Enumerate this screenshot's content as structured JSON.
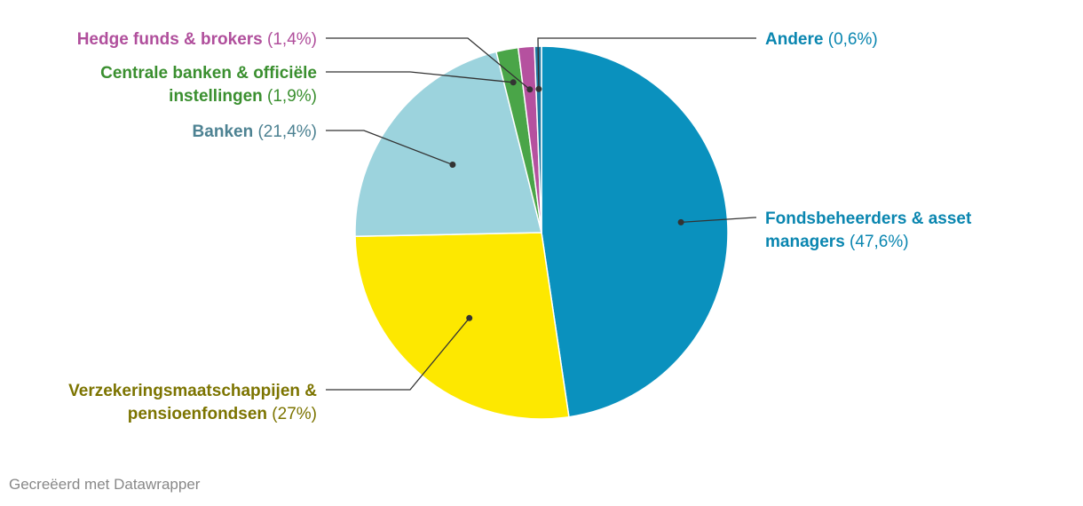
{
  "chart_data": {
    "type": "pie",
    "slices": [
      {
        "label": "Fondsbeheerders & asset managers",
        "label_lines": [
          "Fondsbeheerders & asset",
          "managers"
        ],
        "display_value": "(47,6%)",
        "value": 47.6,
        "color": "#0a91be",
        "label_color": "#0a86b0"
      },
      {
        "label": "Verzekeringsmaatschappijen & pensioenfondsen",
        "label_lines": [
          "Verzekeringsmaatschappijen &",
          "pensioenfondsen"
        ],
        "display_value": "(27%)",
        "value": 27.0,
        "color": "#fde800",
        "label_color": "#7c7400"
      },
      {
        "label": "Banken",
        "label_lines": [
          "Banken"
        ],
        "display_value": "(21,4%)",
        "value": 21.4,
        "color": "#9cd3dd",
        "label_color": "#4d8292"
      },
      {
        "label": "Centrale banken & officiële instellingen",
        "label_lines": [
          "Centrale banken & officiële",
          "instellingen"
        ],
        "display_value": "(1,9%)",
        "value": 1.9,
        "color": "#4aa548",
        "label_color": "#3a8f2f"
      },
      {
        "label": "Hedge funds & brokers",
        "label_lines": [
          "Hedge funds & brokers"
        ],
        "display_value": "(1,4%)",
        "value": 1.4,
        "color": "#b5519f",
        "label_color": "#b04f9c"
      },
      {
        "label": "Andere",
        "label_lines": [
          "Andere"
        ],
        "display_value": "(0,6%)",
        "value": 0.6,
        "color": "#1f79a0",
        "label_color": "#0a86b0"
      }
    ]
  },
  "footer": "Gecreëerd met Datawrapper"
}
